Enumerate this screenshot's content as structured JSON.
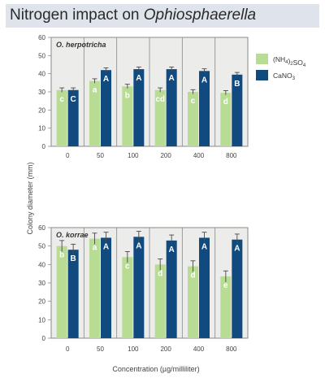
{
  "title": {
    "prefix": "Nitrogen impact on ",
    "genus": "Ophiosphaerella"
  },
  "chart_data": [
    {
      "type": "bar",
      "panel_label": "O. herpotricha",
      "categories": [
        "0",
        "50",
        "100",
        "200",
        "400",
        "800"
      ],
      "ylim": [
        0,
        60
      ],
      "yticks": [
        0,
        10,
        20,
        30,
        40,
        50,
        60
      ],
      "ylabel": "Colony diameter (mm)",
      "xlabel": "",
      "grid": false,
      "legend_position": "top-right",
      "series": [
        {
          "name": "(NH4)2SO4",
          "values": [
            31,
            36,
            33,
            31,
            30,
            29.5
          ],
          "errors": [
            1.2,
            1.2,
            1.2,
            1.2,
            1.2,
            1.2
          ],
          "letters": [
            "c",
            "a",
            "b",
            "cd",
            "c",
            "d"
          ],
          "color": "#b8dc93"
        },
        {
          "name": "CaNO3",
          "values": [
            31,
            42,
            42.5,
            42.5,
            41.5,
            39.5
          ],
          "errors": [
            1.2,
            1.2,
            1.2,
            1.2,
            1.2,
            1.2
          ],
          "letters": [
            "C",
            "A",
            "A",
            "A",
            "A",
            "B"
          ],
          "color": "#114a7e"
        }
      ]
    },
    {
      "type": "bar",
      "panel_label": "O. korrae",
      "categories": [
        "0",
        "50",
        "100",
        "200",
        "400",
        "800"
      ],
      "ylim": [
        0,
        60
      ],
      "yticks": [
        0,
        10,
        20,
        30,
        40,
        50,
        60
      ],
      "ylabel": "Colony diameter (mm)",
      "xlabel": "Concentration (µg/milliliter)",
      "grid": false,
      "series": [
        {
          "name": "(NH4)2SO4",
          "values": [
            50,
            54,
            44,
            40,
            39,
            33.5
          ],
          "errors": [
            3,
            3,
            3,
            3,
            3,
            3
          ],
          "letters": [
            "b",
            "a",
            "c",
            "d",
            "d",
            "e"
          ],
          "color": "#b8dc93"
        },
        {
          "name": "CaNO3",
          "values": [
            48,
            54.5,
            55,
            53,
            54.5,
            53.5
          ],
          "errors": [
            3,
            3,
            3,
            3,
            3,
            3
          ],
          "letters": [
            "B",
            "A",
            "A",
            "A",
            "A",
            "A"
          ],
          "color": "#114a7e"
        }
      ]
    }
  ],
  "legend": [
    {
      "label_base": "(NH",
      "sub1": "4",
      "mid": ")",
      "sub2": "2",
      "tail": "SO",
      "sub3": "4",
      "color": "#b8dc93"
    },
    {
      "label_base": "CaNO",
      "sub1": "3",
      "mid": "",
      "sub2": "",
      "tail": "",
      "sub3": "",
      "color": "#114a7e"
    }
  ],
  "colors": {
    "panel_bg": "#ececeb",
    "frame": "#8a8a8a",
    "axis_text": "#444444",
    "title_bg": "#dfe4ec"
  }
}
